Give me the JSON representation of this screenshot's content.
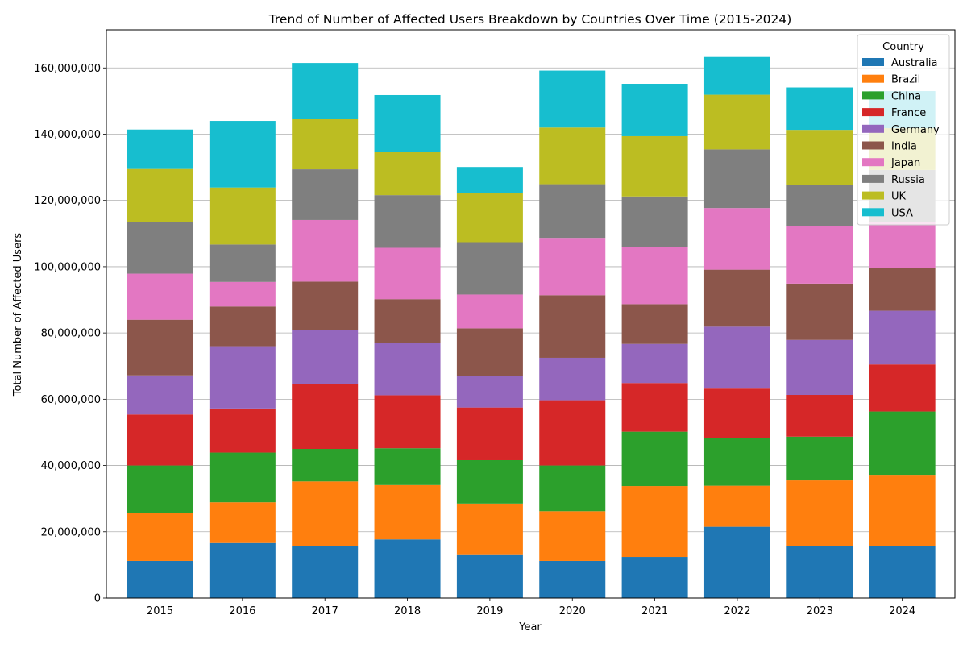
{
  "chart_data": {
    "type": "bar",
    "stacked": true,
    "title": "Trend of Number of Affected Users Breakdown by Countries Over Time (2015-2024)",
    "xlabel": "Year",
    "ylabel": "Total Number of Affected Users",
    "categories": [
      "2015",
      "2016",
      "2017",
      "2018",
      "2019",
      "2020",
      "2021",
      "2022",
      "2023",
      "2024"
    ],
    "ylim": [
      0,
      171500000
    ],
    "yticks": [
      0,
      20000000,
      40000000,
      60000000,
      80000000,
      100000000,
      120000000,
      140000000,
      160000000
    ],
    "ytick_labels": [
      "0",
      "20,000,000",
      "40,000,000",
      "60,000,000",
      "80,000,000",
      "100,000,000",
      "120,000,000",
      "140,000,000",
      "160,000,000"
    ],
    "grid": "y",
    "legend_title": "Country",
    "legend_position": "top-right",
    "series": [
      {
        "name": "Australia",
        "color": "#1f77b4",
        "values": [
          11200000,
          16600000,
          15800000,
          17700000,
          13200000,
          11200000,
          12400000,
          21500000,
          15600000,
          15800000
        ]
      },
      {
        "name": "Brazil",
        "color": "#ff7f0e",
        "values": [
          14500000,
          12300000,
          19400000,
          16400000,
          15300000,
          15000000,
          21400000,
          12400000,
          19900000,
          21400000
        ]
      },
      {
        "name": "China",
        "color": "#2ca02c",
        "values": [
          14300000,
          15000000,
          9800000,
          11100000,
          13100000,
          13800000,
          16400000,
          14500000,
          13200000,
          19100000
        ]
      },
      {
        "name": "France",
        "color": "#d62728",
        "values": [
          15400000,
          13300000,
          19500000,
          16000000,
          15900000,
          19700000,
          14700000,
          14800000,
          12600000,
          14200000
        ]
      },
      {
        "name": "Germany",
        "color": "#9467bd",
        "values": [
          11800000,
          18800000,
          16300000,
          15700000,
          9400000,
          12800000,
          11800000,
          18700000,
          16600000,
          16200000
        ]
      },
      {
        "name": "India",
        "color": "#8c564b",
        "values": [
          16800000,
          12000000,
          14700000,
          13300000,
          14500000,
          18900000,
          12000000,
          17200000,
          17000000,
          12800000
        ]
      },
      {
        "name": "Japan",
        "color": "#e377c2",
        "values": [
          13900000,
          7400000,
          18600000,
          15500000,
          10200000,
          17300000,
          17300000,
          18600000,
          17400000,
          14000000
        ]
      },
      {
        "name": "Russia",
        "color": "#7f7f7f",
        "values": [
          15500000,
          11300000,
          15300000,
          15900000,
          15800000,
          16200000,
          15200000,
          17700000,
          12300000,
          15700000
        ]
      },
      {
        "name": "UK",
        "color": "#bcbd22",
        "values": [
          16100000,
          17200000,
          15100000,
          13000000,
          14900000,
          17100000,
          18200000,
          16500000,
          16700000,
          12600000
        ]
      },
      {
        "name": "USA",
        "color": "#17becf",
        "values": [
          11900000,
          20100000,
          17000000,
          17200000,
          7800000,
          17200000,
          15800000,
          11400000,
          12800000,
          11200000
        ]
      }
    ]
  }
}
